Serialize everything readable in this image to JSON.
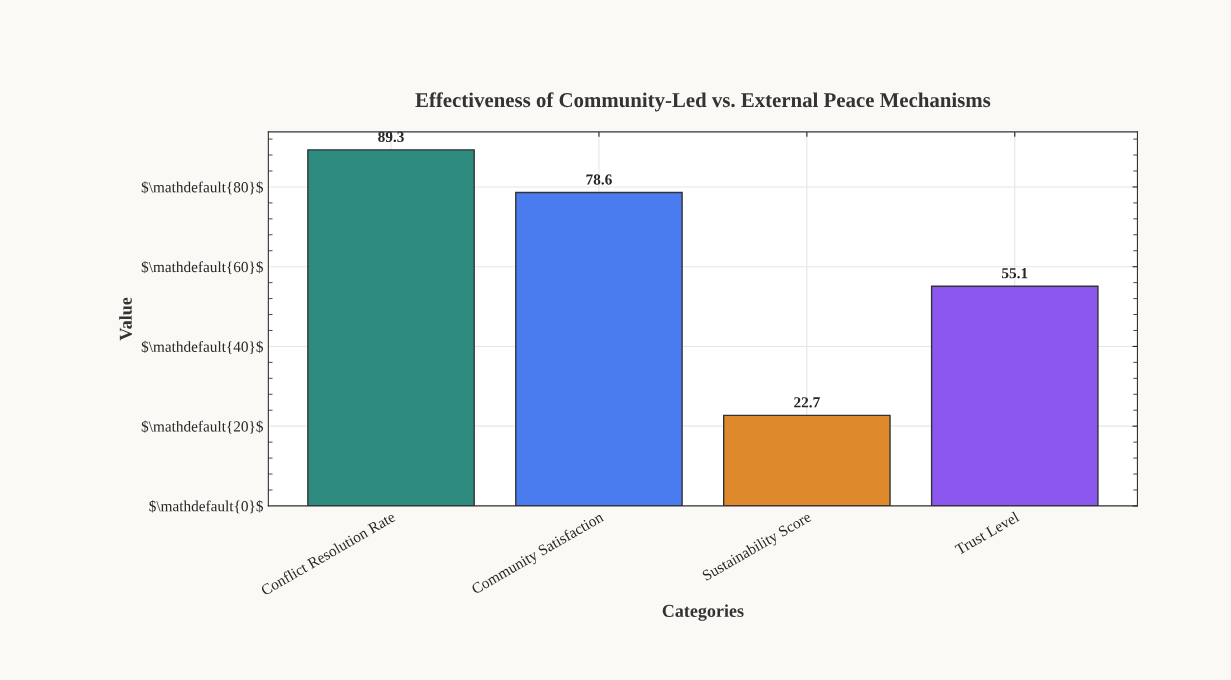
{
  "chart_data": {
    "type": "bar",
    "title": "Effectiveness of Community-Led vs. External Peace Mechanisms",
    "xlabel": "Categories",
    "ylabel": "Value",
    "categories": [
      "Conflict Resolution Rate",
      "Community Satisfaction",
      "Sustainability Score",
      "Trust Level"
    ],
    "values": [
      89.3,
      78.6,
      22.7,
      55.1
    ],
    "colors": [
      "#2e8b80",
      "#4a7cf0",
      "#de8a2c",
      "#8b57ef"
    ],
    "ylim": [
      0,
      93.8
    ],
    "yticks": [
      {
        "value": 0,
        "label": "$\\mathdefault{0}$"
      },
      {
        "value": 20,
        "label": "$\\mathdefault{20}$"
      },
      {
        "value": 40,
        "label": "$\\mathdefault{40}$"
      },
      {
        "value": 60,
        "label": "$\\mathdefault{60}$"
      },
      {
        "value": 80,
        "label": "$\\mathdefault{80}$"
      }
    ],
    "data_labels": true,
    "grid": true,
    "legend": false
  }
}
